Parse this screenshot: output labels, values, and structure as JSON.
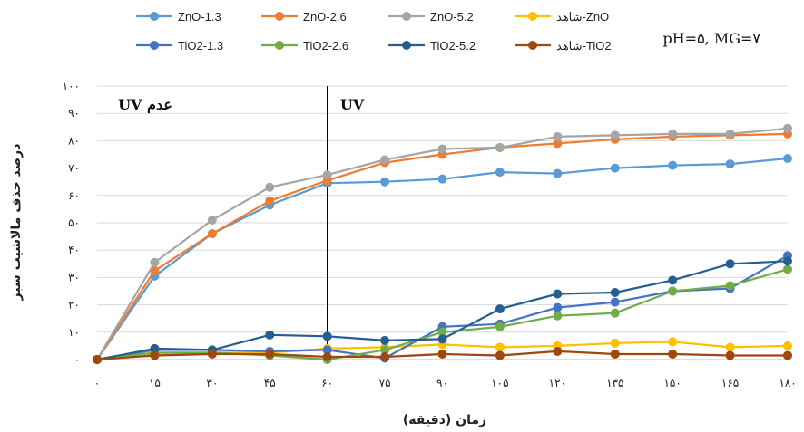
{
  "chart_data": {
    "type": "line",
    "title": "",
    "condition_label": "pH=۵, MG=۷",
    "xlabel": "زمان (دقیقه)",
    "ylabel": "درصد حذف مالاشیت سبز",
    "x": [
      0,
      15,
      30,
      45,
      60,
      75,
      90,
      105,
      120,
      135,
      150,
      165,
      180
    ],
    "x_tick_labels": [
      "۰",
      "۱۵",
      "۳۰",
      "۴۵",
      "۶۰",
      "۷۵",
      "۹۰",
      "۱۰۵",
      "۱۲۰",
      "۱۳۵",
      "۱۵۰",
      "۱۶۵",
      "۱۸۰"
    ],
    "ylim": [
      0,
      100
    ],
    "y_ticks": [
      0,
      10,
      20,
      30,
      40,
      50,
      60,
      70,
      80,
      90,
      100
    ],
    "y_tick_labels": [
      "۰",
      "۱۰",
      "۲۰",
      "۳۰",
      "۴۰",
      "۵۰",
      "۶۰",
      "۷۰",
      "۸۰",
      "۹۰",
      "۱۰۰"
    ],
    "grid": true,
    "legend_position": "top",
    "annotations": [
      {
        "text": "عدم UV",
        "x_range": [
          0,
          60
        ]
      },
      {
        "text": "UV",
        "x_range": [
          60,
          180
        ]
      }
    ],
    "divider_x": 60,
    "series": [
      {
        "name": "ZnO-1.3",
        "color": "#5b9bd5",
        "values": [
          0,
          30.5,
          46,
          56.5,
          64.5,
          65,
          66,
          68.5,
          68,
          70,
          71,
          71.5,
          73.5
        ]
      },
      {
        "name": "ZnO-2.6",
        "color": "#ed7d31",
        "values": [
          0,
          32.5,
          46,
          58,
          65.5,
          72,
          75,
          77.5,
          79,
          80.5,
          81.5,
          82,
          82.5
        ]
      },
      {
        "name": "ZnO-5.2",
        "color": "#a5a5a5",
        "values": [
          0,
          35.5,
          51,
          63,
          67.5,
          73,
          77,
          77.5,
          81.5,
          82,
          82.5,
          82.5,
          84.5
        ]
      },
      {
        "name": "شاهد-ZnO",
        "color": "#ffc000",
        "values": [
          0,
          2,
          2.5,
          2.5,
          4,
          4.5,
          5.5,
          4.5,
          5,
          6,
          6.5,
          4.5,
          5
        ]
      },
      {
        "name": "TiO2-1.3",
        "color": "#4472c4",
        "values": [
          0,
          3.5,
          3.5,
          3,
          3.5,
          0.5,
          12,
          13,
          19,
          21,
          25,
          26,
          38
        ]
      },
      {
        "name": "TiO2-2.6",
        "color": "#70ad47",
        "values": [
          0,
          2.5,
          2.5,
          1.5,
          0,
          3.5,
          10,
          12,
          16,
          17,
          25,
          27,
          33
        ]
      },
      {
        "name": "TiO2-5.2",
        "color": "#255e91",
        "values": [
          0,
          4,
          3.5,
          9,
          8.5,
          7,
          7.5,
          18.5,
          24,
          24.5,
          29,
          35,
          36
        ]
      },
      {
        "name": "شاهد-TiO2",
        "color": "#9e480e",
        "values": [
          0,
          1.5,
          2,
          2,
          1,
          1,
          2,
          1.5,
          3,
          2,
          2,
          1.5,
          1.5
        ]
      }
    ]
  }
}
